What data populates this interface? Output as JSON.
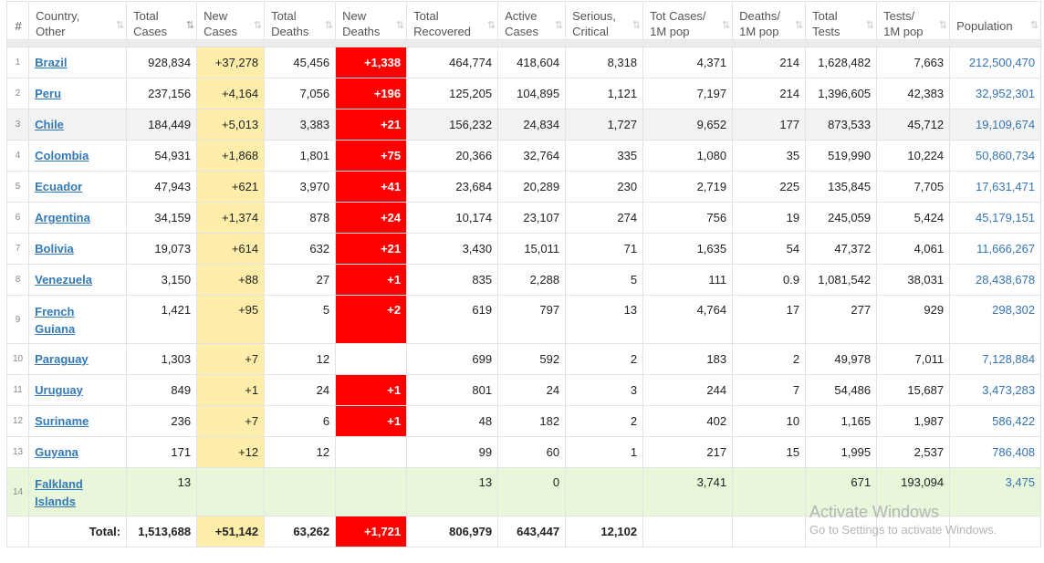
{
  "headers": [
    {
      "label1": "#",
      "label2": "",
      "sort": ""
    },
    {
      "label1": "Country,",
      "label2": "Other",
      "sort": "⇅"
    },
    {
      "label1": "Total",
      "label2": "Cases",
      "sort": "⇅"
    },
    {
      "label1": "New",
      "label2": "Cases",
      "sort": "⇅"
    },
    {
      "label1": "Total",
      "label2": "Deaths",
      "sort": "⇅"
    },
    {
      "label1": "New",
      "label2": "Deaths",
      "sort": "⇅"
    },
    {
      "label1": "Total",
      "label2": "Recovered",
      "sort": "⇅"
    },
    {
      "label1": "Active",
      "label2": "Cases",
      "sort": "⇅"
    },
    {
      "label1": "Serious,",
      "label2": "Critical",
      "sort": "⇅"
    },
    {
      "label1": "Tot Cases/",
      "label2": "1M pop",
      "sort": "⇅"
    },
    {
      "label1": "Deaths/",
      "label2": "1M pop",
      "sort": "⇅"
    },
    {
      "label1": "Total",
      "label2": "Tests",
      "sort": "⇅"
    },
    {
      "label1": "Tests/",
      "label2": "1M pop",
      "sort": "⇅"
    },
    {
      "label1": "Population",
      "label2": "",
      "sort": "⇅"
    }
  ],
  "rows": [
    {
      "num": "1",
      "country": "Brazil",
      "country2": "",
      "total_cases": "928,834",
      "new_cases": "+37,278",
      "total_deaths": "45,456",
      "new_deaths": "+1,338",
      "recovered": "464,774",
      "active": "418,604",
      "serious": "8,318",
      "cases_1m": "4,371",
      "deaths_1m": "214",
      "tests": "1,628,482",
      "tests_1m": "7,663",
      "population": "212,500,470"
    },
    {
      "num": "2",
      "country": "Peru",
      "country2": "",
      "total_cases": "237,156",
      "new_cases": "+4,164",
      "total_deaths": "7,056",
      "new_deaths": "+196",
      "recovered": "125,205",
      "active": "104,895",
      "serious": "1,121",
      "cases_1m": "7,197",
      "deaths_1m": "214",
      "tests": "1,396,605",
      "tests_1m": "42,383",
      "population": "32,952,301"
    },
    {
      "num": "3",
      "country": "Chile",
      "country2": "",
      "total_cases": "184,449",
      "new_cases": "+5,013",
      "total_deaths": "3,383",
      "new_deaths": "+21",
      "recovered": "156,232",
      "active": "24,834",
      "serious": "1,727",
      "cases_1m": "9,652",
      "deaths_1m": "177",
      "tests": "873,533",
      "tests_1m": "45,712",
      "population": "19,109,674"
    },
    {
      "num": "4",
      "country": "Colombia",
      "country2": "",
      "total_cases": "54,931",
      "new_cases": "+1,868",
      "total_deaths": "1,801",
      "new_deaths": "+75",
      "recovered": "20,366",
      "active": "32,764",
      "serious": "335",
      "cases_1m": "1,080",
      "deaths_1m": "35",
      "tests": "519,990",
      "tests_1m": "10,224",
      "population": "50,860,734"
    },
    {
      "num": "5",
      "country": "Ecuador",
      "country2": "",
      "total_cases": "47,943",
      "new_cases": "+621",
      "total_deaths": "3,970",
      "new_deaths": "+41",
      "recovered": "23,684",
      "active": "20,289",
      "serious": "230",
      "cases_1m": "2,719",
      "deaths_1m": "225",
      "tests": "135,845",
      "tests_1m": "7,705",
      "population": "17,631,471"
    },
    {
      "num": "6",
      "country": "Argentina",
      "country2": "",
      "total_cases": "34,159",
      "new_cases": "+1,374",
      "total_deaths": "878",
      "new_deaths": "+24",
      "recovered": "10,174",
      "active": "23,107",
      "serious": "274",
      "cases_1m": "756",
      "deaths_1m": "19",
      "tests": "245,059",
      "tests_1m": "5,424",
      "population": "45,179,151"
    },
    {
      "num": "7",
      "country": "Bolivia",
      "country2": "",
      "total_cases": "19,073",
      "new_cases": "+614",
      "total_deaths": "632",
      "new_deaths": "+21",
      "recovered": "3,430",
      "active": "15,011",
      "serious": "71",
      "cases_1m": "1,635",
      "deaths_1m": "54",
      "tests": "47,372",
      "tests_1m": "4,061",
      "population": "11,666,267"
    },
    {
      "num": "8",
      "country": "Venezuela",
      "country2": "",
      "total_cases": "3,150",
      "new_cases": "+88",
      "total_deaths": "27",
      "new_deaths": "+1",
      "recovered": "835",
      "active": "2,288",
      "serious": "5",
      "cases_1m": "111",
      "deaths_1m": "0.9",
      "tests": "1,081,542",
      "tests_1m": "38,031",
      "population": "28,438,678"
    },
    {
      "num": "9",
      "country": "French",
      "country2": "Guiana",
      "total_cases": "1,421",
      "new_cases": "+95",
      "total_deaths": "5",
      "new_deaths": "+2",
      "recovered": "619",
      "active": "797",
      "serious": "13",
      "cases_1m": "4,764",
      "deaths_1m": "17",
      "tests": "277",
      "tests_1m": "929",
      "population": "298,302"
    },
    {
      "num": "10",
      "country": "Paraguay",
      "country2": "",
      "total_cases": "1,303",
      "new_cases": "+7",
      "total_deaths": "12",
      "new_deaths": "",
      "recovered": "699",
      "active": "592",
      "serious": "2",
      "cases_1m": "183",
      "deaths_1m": "2",
      "tests": "49,978",
      "tests_1m": "7,011",
      "population": "7,128,884"
    },
    {
      "num": "11",
      "country": "Uruguay",
      "country2": "",
      "total_cases": "849",
      "new_cases": "+1",
      "total_deaths": "24",
      "new_deaths": "+1",
      "recovered": "801",
      "active": "24",
      "serious": "3",
      "cases_1m": "244",
      "deaths_1m": "7",
      "tests": "54,486",
      "tests_1m": "15,687",
      "population": "3,473,283"
    },
    {
      "num": "12",
      "country": "Suriname",
      "country2": "",
      "total_cases": "236",
      "new_cases": "+7",
      "total_deaths": "6",
      "new_deaths": "+1",
      "recovered": "48",
      "active": "182",
      "serious": "2",
      "cases_1m": "402",
      "deaths_1m": "10",
      "tests": "1,165",
      "tests_1m": "1,987",
      "population": "586,422"
    },
    {
      "num": "13",
      "country": "Guyana",
      "country2": "",
      "total_cases": "171",
      "new_cases": "+12",
      "total_deaths": "12",
      "new_deaths": "",
      "recovered": "99",
      "active": "60",
      "serious": "1",
      "cases_1m": "217",
      "deaths_1m": "15",
      "tests": "1,995",
      "tests_1m": "2,537",
      "population": "786,408"
    },
    {
      "num": "14",
      "country": "Falkland",
      "country2": "Islands",
      "total_cases": "13",
      "new_cases": "",
      "total_deaths": "",
      "new_deaths": "",
      "recovered": "13",
      "active": "0",
      "serious": "",
      "cases_1m": "3,741",
      "deaths_1m": "",
      "tests": "671",
      "tests_1m": "193,094",
      "population": "3,475"
    }
  ],
  "total": {
    "label": "Total:",
    "total_cases": "1,513,688",
    "new_cases": "+51,142",
    "total_deaths": "63,262",
    "new_deaths": "+1,721",
    "recovered": "806,979",
    "active": "643,447",
    "serious": "12,102"
  },
  "watermark": {
    "line1": "Activate Windows",
    "line2": "Go to Settings to activate Windows."
  },
  "colors": {
    "new_cases_bg": "#ffeeaa",
    "new_deaths_bg": "#ff0000",
    "highlight_row_bg": "#e8f6d9",
    "link": "#337ab7"
  }
}
